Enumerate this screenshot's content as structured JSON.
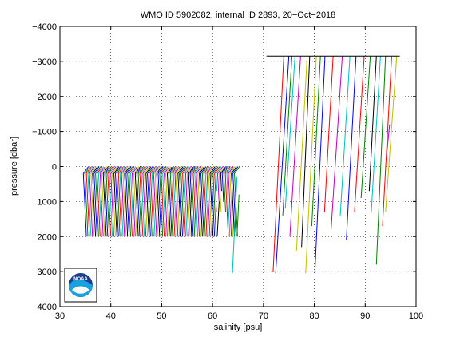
{
  "chart_data": {
    "type": "line",
    "title": "WMO ID 5902082, internal ID 2893, 20−Oct−2018",
    "xlabel": "salinity [psu]",
    "ylabel": "pressure [dbar]",
    "xlim": [
      30,
      100
    ],
    "ylim": [
      -4000,
      4000
    ],
    "y_reversed": true,
    "grid": true,
    "grid_style": "dotted",
    "xticks": [
      "30",
      "40",
      "50",
      "60",
      "70",
      "80",
      "90",
      "100"
    ],
    "yticks": [
      "−4000",
      "−3000",
      "−2000",
      "−1000",
      "0",
      "1000",
      "2000",
      "3000",
      "4000"
    ],
    "logo": "noaa-logo",
    "cluster_1": {
      "description_salinity_start": 35.0,
      "profile_offset_step": 0.3,
      "profile_count": 100,
      "top_pressure": 0,
      "bottom_pressure": 2000,
      "surface_salinity_anomaly": 1.0,
      "colors": [
        "#0000ff",
        "#008000",
        "#ff0000",
        "#00bfbf",
        "#bf00bf",
        "#bfbf00",
        "#000000"
      ]
    },
    "outlier_segments": [
      {
        "s_top": 74.0,
        "s_bottom": 71.9,
        "p_top": -3150,
        "p_bottom": 3000,
        "color": "#ff0000"
      },
      {
        "s_top": 75.0,
        "s_bottom": 72.4,
        "p_top": -3150,
        "p_bottom": 3050,
        "color": "#0000ff"
      },
      {
        "s_top": 75.6,
        "s_bottom": 73.8,
        "p_top": -3150,
        "p_bottom": 1400,
        "color": "#008000"
      },
      {
        "s_top": 76.2,
        "s_bottom": 74.3,
        "p_top": -3150,
        "p_bottom": 1200,
        "color": "#00bfbf"
      },
      {
        "s_top": 77.3,
        "s_bottom": 75.2,
        "p_top": -3150,
        "p_bottom": 2000,
        "color": "#bf00bf"
      },
      {
        "s_top": 78.6,
        "s_bottom": 76.5,
        "p_top": -3150,
        "p_bottom": 2400,
        "color": "#bfbf00"
      },
      {
        "s_top": 79.1,
        "s_bottom": 77.5,
        "p_top": -3150,
        "p_bottom": 2300,
        "color": "#000000"
      },
      {
        "s_top": 80.4,
        "s_bottom": 78.3,
        "p_top": -3150,
        "p_bottom": 3050,
        "color": "#bfbf00"
      },
      {
        "s_top": 81.2,
        "s_bottom": 79.5,
        "p_top": -3150,
        "p_bottom": 1700,
        "color": "#008000"
      },
      {
        "s_top": 82.1,
        "s_bottom": 80.1,
        "p_top": -3150,
        "p_bottom": 3050,
        "color": "#0000ff"
      },
      {
        "s_top": 83.7,
        "s_bottom": 82.0,
        "p_top": -3150,
        "p_bottom": 1300,
        "color": "#ff0000"
      },
      {
        "s_top": 85.5,
        "s_bottom": 83.3,
        "p_top": -3150,
        "p_bottom": 1800,
        "color": "#bf00bf"
      },
      {
        "s_top": 87.0,
        "s_bottom": 85.1,
        "p_top": -3150,
        "p_bottom": 1400,
        "color": "#00bfbf"
      },
      {
        "s_top": 88.2,
        "s_bottom": 86.3,
        "p_top": -3150,
        "p_bottom": 2100,
        "color": "#0000ff"
      },
      {
        "s_top": 89.8,
        "s_bottom": 87.9,
        "p_top": -3150,
        "p_bottom": 1300,
        "color": "#ff0000"
      },
      {
        "s_top": 91.0,
        "s_bottom": 89.2,
        "p_top": -3150,
        "p_bottom": 900,
        "color": "#008000"
      },
      {
        "s_top": 92.2,
        "s_bottom": 90.8,
        "p_top": -3150,
        "p_bottom": 700,
        "color": "#000000"
      },
      {
        "s_top": 93.0,
        "s_bottom": 91.2,
        "p_top": -3150,
        "p_bottom": 1300,
        "color": "#00bfbf"
      },
      {
        "s_top": 94.0,
        "s_bottom": 92.2,
        "p_top": -3150,
        "p_bottom": 2800,
        "color": "#008000"
      },
      {
        "s_top": 95.2,
        "s_bottom": 93.4,
        "p_top": -3150,
        "p_bottom": 1700,
        "color": "#ff0000"
      },
      {
        "s_top": 96.2,
        "s_bottom": 94.0,
        "p_top": -3150,
        "p_bottom": 1300,
        "color": "#bfbf00"
      },
      {
        "s_top": 94.8,
        "s_bottom": 94.2,
        "p_top": -1200,
        "p_bottom": -300,
        "color": "#bf00bf"
      }
    ],
    "extra_segments": [
      {
        "s_top": 64.8,
        "s_bottom": 63.9,
        "p_top": 300,
        "p_bottom": 3050,
        "color": "#00bfbf"
      },
      {
        "s_top": 65.2,
        "s_bottom": 64.8,
        "p_top": 800,
        "p_bottom": 2000,
        "color": "#008000"
      },
      {
        "s_top": 61.3,
        "s_bottom": 60.9,
        "p_top": 1000,
        "p_bottom": 2000,
        "color": "#000000"
      }
    ],
    "top_bar": {
      "s_start": 70.6,
      "s_end": 96.8,
      "p": -3150
    }
  }
}
